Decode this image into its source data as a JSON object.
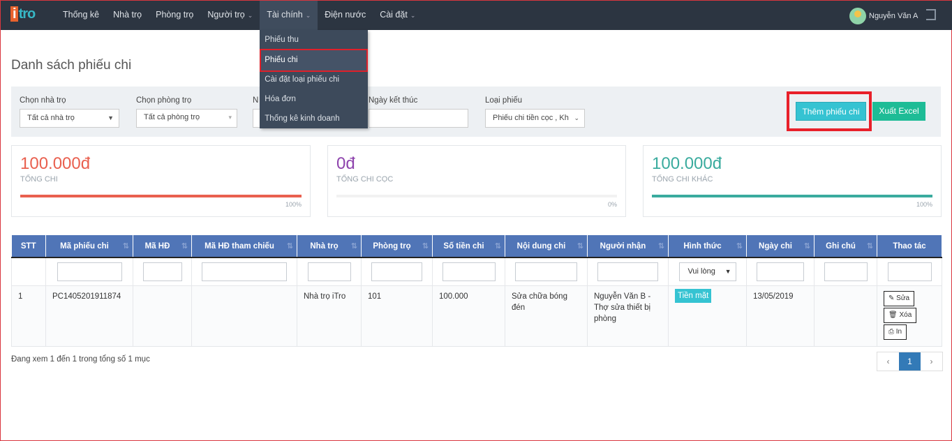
{
  "nav": {
    "logo": "itro",
    "items": [
      {
        "label": "Thống kê"
      },
      {
        "label": "Nhà trọ"
      },
      {
        "label": "Phòng trọ"
      },
      {
        "label": "Người trọ"
      },
      {
        "label": "Tài chính"
      },
      {
        "label": "Điện nước"
      },
      {
        "label": "Cài đặt"
      }
    ],
    "active": "Tài chính",
    "user": "Nguyễn Văn A"
  },
  "dropdown": [
    "Phiếu thu",
    "Phiếu chi",
    "Cài đặt loại phiếu chi",
    "Hóa đơn",
    "Thống kê kinh doanh"
  ],
  "page": {
    "title": "Danh sách phiếu chi"
  },
  "filters": {
    "house_label": "Chọn nhà trọ",
    "house_value": "Tất cả nhà trọ",
    "room_label": "Chọn phòng trọ",
    "room_value": "Tất cả phòng trọ",
    "start_label": "N",
    "end_label": "Ngày kết thúc",
    "type_label": "Loại phiếu",
    "type_value": "Phiếu chi tiền cọc , Kh"
  },
  "buttons": {
    "add": "Thêm phiếu chi",
    "export": "Xuất Excel"
  },
  "cards": [
    {
      "value": "100.000đ",
      "label": "TỔNG CHI",
      "percent": "100%",
      "fill": 100,
      "color": "#e9604f"
    },
    {
      "value": "0đ",
      "label": "TỔNG CHI CỌC",
      "percent": "0%",
      "fill": 0,
      "color": "#8e44ad"
    },
    {
      "value": "100.000đ",
      "label": "TỔNG CHI KHÁC",
      "percent": "100%",
      "fill": 100,
      "color": "#3aab9e"
    }
  ],
  "table": {
    "headers": [
      "STT",
      "Mã phiếu chi",
      "Mã HĐ",
      "Mã HĐ tham chiếu",
      "Nhà trọ",
      "Phòng trọ",
      "Số tiền chi",
      "Nội dung chi",
      "Người nhận",
      "Hình thức",
      "Ngày chi",
      "Ghi chú",
      "Thao tác"
    ],
    "method_filter": "Vui lòng",
    "rows": [
      {
        "stt": "1",
        "code": "PC1405201911874",
        "contract": "",
        "ref": "",
        "house": "Nhà trọ iTro",
        "room": "101",
        "amount": "100.000",
        "content": "Sửa chữa bóng đén",
        "receiver": "Nguyễn Văn B - Thợ sửa thiết bị phòng",
        "method": "Tiền mặt",
        "date": "13/05/2019",
        "note": ""
      }
    ],
    "actions": {
      "edit": "Sửa",
      "delete": "Xóa",
      "print": "In"
    }
  },
  "footer": {
    "info": "Đang xem 1 đến 1 trong tổng số 1 mục",
    "prev": "‹",
    "page": "1",
    "next": "›"
  }
}
